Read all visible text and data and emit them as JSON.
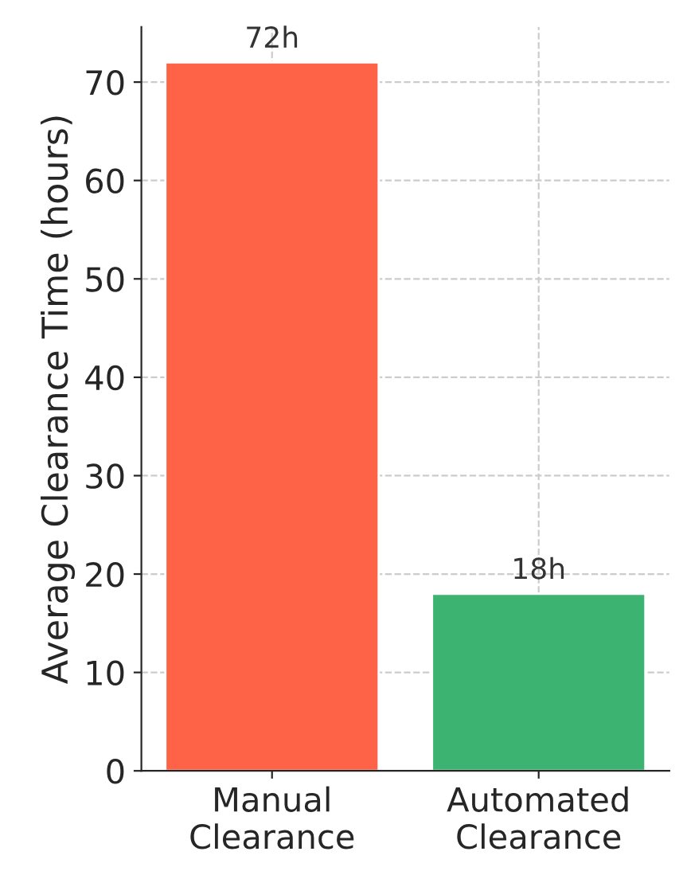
{
  "chart_data": {
    "type": "bar",
    "ylabel": "Average Clearance Time (hours)",
    "categories": [
      "Manual\nClearance",
      "Automated\nClearance"
    ],
    "values": [
      72,
      18
    ],
    "colors": [
      "#ff6347",
      "#3cb371"
    ],
    "value_labels": [
      "72h",
      "18h"
    ],
    "ylim": [
      0,
      75.6
    ],
    "yticks": [
      0,
      10,
      20,
      30,
      40,
      50,
      60,
      70
    ],
    "grid": true,
    "line_style": "dashed"
  }
}
